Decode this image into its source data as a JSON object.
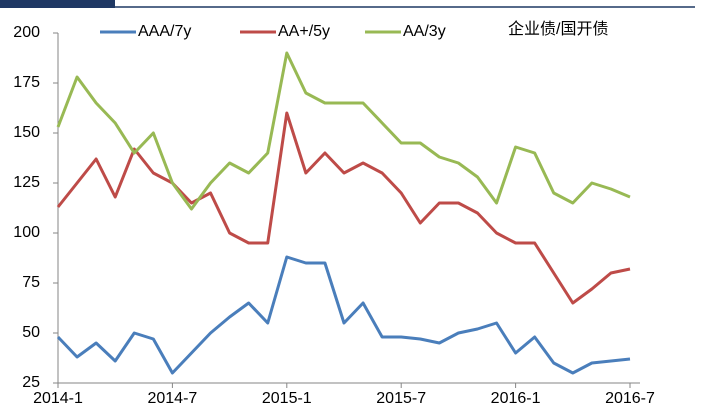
{
  "chart_data": {
    "type": "line",
    "annotation": "企业债/国开债",
    "categories": [
      "2014-1",
      null,
      null,
      null,
      null,
      null,
      "2014-7",
      null,
      null,
      null,
      null,
      null,
      "2015-1",
      null,
      null,
      null,
      null,
      null,
      "2015-7",
      null,
      null,
      null,
      null,
      null,
      "2016-1",
      null,
      null,
      null,
      null,
      null,
      "2016-7"
    ],
    "series": [
      {
        "name": "AAA/7y",
        "color": "#4a7ebb",
        "values": [
          48,
          38,
          45,
          36,
          50,
          47,
          30,
          40,
          50,
          58,
          65,
          55,
          88,
          85,
          85,
          55,
          65,
          48,
          48,
          47,
          45,
          50,
          52,
          55,
          40,
          48,
          35,
          30,
          35,
          36,
          37
        ]
      },
      {
        "name": "AA+/5y",
        "color": "#be4b48",
        "values": [
          113,
          125,
          137,
          118,
          142,
          130,
          125,
          115,
          120,
          100,
          95,
          95,
          160,
          130,
          140,
          130,
          135,
          130,
          120,
          105,
          115,
          115,
          110,
          100,
          95,
          95,
          80,
          65,
          72,
          80,
          82
        ]
      },
      {
        "name": "AA/3y",
        "color": "#98b954",
        "values": [
          153,
          178,
          165,
          155,
          140,
          150,
          125,
          112,
          125,
          135,
          130,
          140,
          190,
          170,
          165,
          165,
          165,
          155,
          145,
          145,
          138,
          135,
          128,
          115,
          143,
          140,
          120,
          115,
          125,
          122,
          118
        ]
      }
    ],
    "ylim": [
      25,
      200
    ],
    "yticks": [
      25,
      50,
      75,
      100,
      125,
      150,
      175,
      200
    ],
    "grid": false
  }
}
